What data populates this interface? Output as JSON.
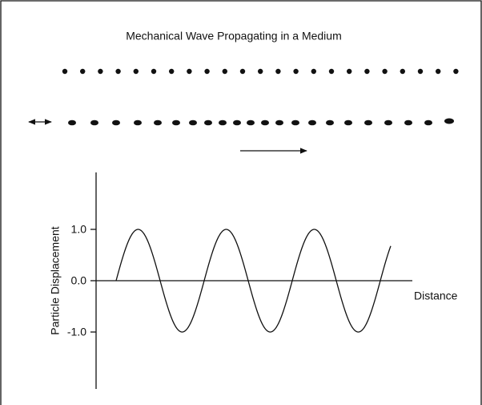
{
  "title": "Mechanical Wave Propagating in a Medium",
  "plot": {
    "y_axis_label": "Particle Displacement",
    "x_axis_label": "Distance",
    "y_tick_labels": [
      "1.0",
      "0.0",
      "-1.0"
    ]
  }
}
